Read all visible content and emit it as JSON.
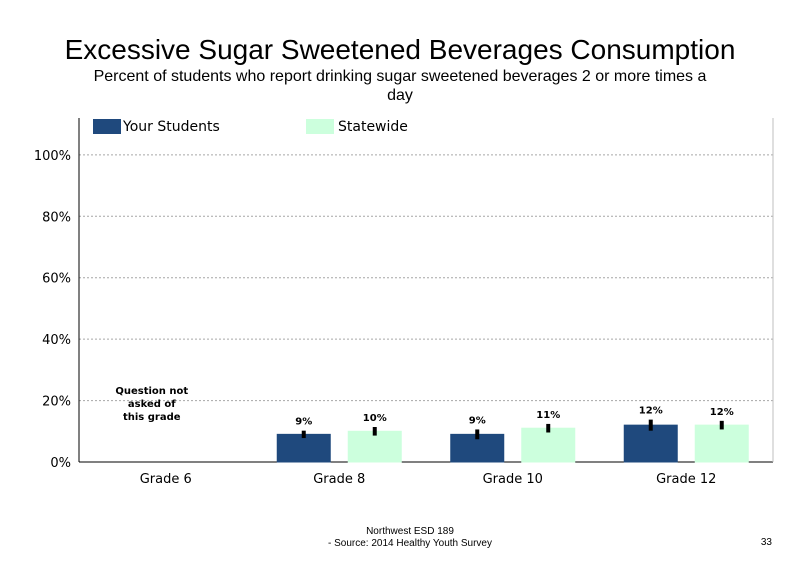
{
  "chart_data": {
    "type": "bar",
    "title": "Excessive Sugar Sweetened Beverages Consumption",
    "subtitle": "Percent of students who report drinking sugar sweetened beverages 2 or more times a day",
    "categories": [
      "Grade 6",
      "Grade 8",
      "Grade 10",
      "Grade 12"
    ],
    "series": [
      {
        "name": "Your Students",
        "color": "#1f497d",
        "values": [
          null,
          9,
          9,
          12
        ],
        "labels": [
          "",
          "9%",
          "9%",
          "12%"
        ],
        "err": [
          null,
          1.2,
          1.6,
          1.8
        ]
      },
      {
        "name": "Statewide",
        "color": "#ccffdd",
        "values": [
          null,
          10,
          11,
          12
        ],
        "labels": [
          "",
          "10%",
          "11%",
          "12%"
        ],
        "err": [
          null,
          1.4,
          1.4,
          1.4
        ]
      }
    ],
    "ylim": [
      0,
      112
    ],
    "yticks": [
      0,
      20,
      40,
      60,
      80,
      100
    ],
    "ytick_labels": [
      "0%",
      "20%",
      "40%",
      "60%",
      "80%",
      "100%"
    ],
    "grid": true,
    "legend_position": "top-left",
    "annotations": [
      {
        "category": "Grade 6",
        "text": "Question not asked of this grade"
      }
    ]
  },
  "annotation_lines": [
    "Question not",
    "asked of",
    "this grade"
  ],
  "footer": {
    "line1": "Northwest ESD  189",
    "line2": "- Source: 2014 Healthy  Youth Survey"
  },
  "page_number": "33"
}
